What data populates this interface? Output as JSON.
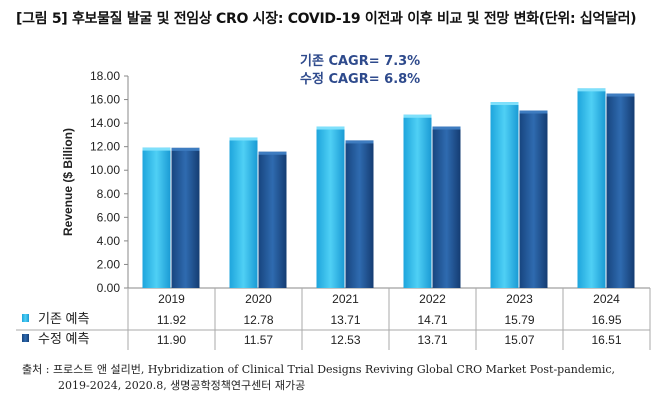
{
  "title": "[그림 5] 후보물질 발굴 및 전임상 CRO 시장: COVID-19 이전과 이후 비교 및 전망 변화(단위: 십억달러)",
  "chart_data": {
    "type": "bar",
    "ylabel": "Revenue ($ Billion)",
    "ylim": [
      0,
      18
    ],
    "yticks": [
      "0.00",
      "2.00",
      "4.00",
      "6.00",
      "8.00",
      "10.00",
      "12.00",
      "14.00",
      "16.00",
      "18.00"
    ],
    "categories": [
      "2019",
      "2020",
      "2021",
      "2022",
      "2023",
      "2024"
    ],
    "series": [
      {
        "name": "기존 예측",
        "color": "#29b6e8",
        "values": [
          11.92,
          12.78,
          13.71,
          14.71,
          15.79,
          16.95
        ],
        "labels": [
          "11.92",
          "12.78",
          "13.71",
          "14.71",
          "15.79",
          "16.95"
        ]
      },
      {
        "name": "수정 예측",
        "color": "#1f5a9e",
        "values": [
          11.9,
          11.57,
          12.53,
          13.71,
          15.07,
          16.51
        ],
        "labels": [
          "11.90",
          "11.57",
          "12.53",
          "13.71",
          "15.07",
          "16.51"
        ]
      }
    ],
    "annotations": [
      "기존 CAGR= 7.3%",
      "수정 CAGR= 6.8%"
    ],
    "data_table": true,
    "grid": false
  },
  "source": {
    "line1": "출처 : 프로스트 앤 설리번, Hybridization of Clinical Trial Designs Reviving Global CRO Market Post-pandemic,",
    "line2": "2019-2024, 2020.8, 생명공학정책연구센터 재가공"
  }
}
